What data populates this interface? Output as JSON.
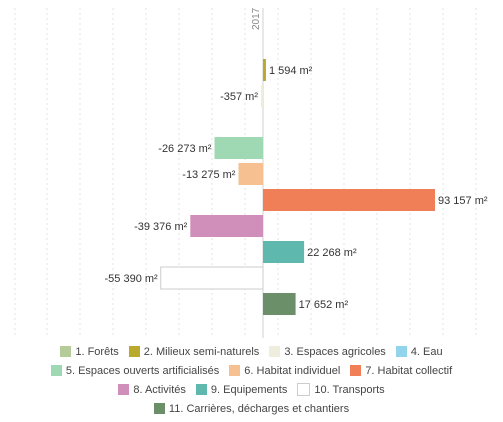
{
  "chart_data": {
    "type": "bar",
    "orientation": "horizontal",
    "column_label": "2017",
    "categories": [
      "1. Forêts",
      "2. Milieux semi-naturels",
      "3. Espaces agricoles",
      "4. Eau",
      "5. Espaces ouverts artificialisés",
      "6. Habitat individuel",
      "7. Habitat collectif",
      "8. Activités",
      "9. Equipements",
      "10. Transports",
      "11. Carrières, décharges et chantiers"
    ],
    "values": [
      0,
      1594,
      -357,
      0,
      -26273,
      -13275,
      93157,
      -39376,
      22268,
      -55390,
      17652
    ],
    "value_labels": [
      "",
      "1 594 m²",
      "-357 m²",
      "",
      "-26 273 m²",
      "-13 275 m²",
      "93 157 m²",
      "-39 376 m²",
      "22 268 m²",
      "-55 390 m²",
      "17 652 m²"
    ],
    "colors": [
      "#b5cc9a",
      "#b9aa2e",
      "#efedde",
      "#93d4ed",
      "#9fd9b4",
      "#f6c091",
      "#f07f57",
      "#cf8fba",
      "#5fb8ae",
      "#ffffff",
      "#6b9069"
    ],
    "grid": true,
    "legend_position": "bottom"
  },
  "legend_rows": [
    [
      0,
      1,
      2,
      3
    ],
    [
      4,
      5,
      6
    ],
    [
      7,
      8,
      9
    ],
    [
      10
    ]
  ]
}
